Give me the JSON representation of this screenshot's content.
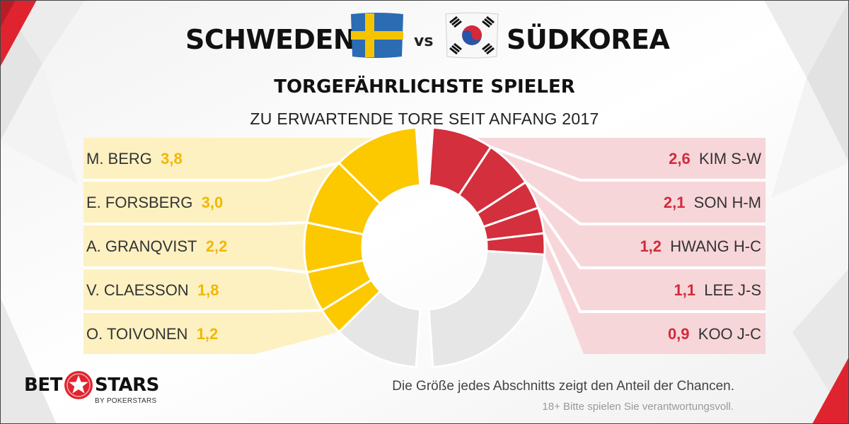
{
  "header": {
    "team_left": "SCHWEDEN",
    "vs": "vs",
    "team_right": "SÜDKOREA",
    "flag_left": "sweden-flag-icon",
    "flag_right": "south-korea-flag-icon"
  },
  "chart_data": {
    "type": "pie",
    "title": "TORGEFÄHRLICHSTE SPIELER",
    "subtitle": "ZU ERWARTENDE TORE SEIT ANFANG 2017",
    "series": [
      {
        "name": "SCHWEDEN",
        "color": "#fcc800",
        "remainder_color": "#e6e6e6",
        "players": [
          {
            "name": "M. BERG",
            "value": 3.8,
            "label": "3,8"
          },
          {
            "name": "E. FORSBERG",
            "value": 3.0,
            "label": "3,0"
          },
          {
            "name": "A. GRANQVIST",
            "value": 2.2,
            "label": "2,2"
          },
          {
            "name": "V. CLAESSON",
            "value": 1.8,
            "label": "1,8"
          },
          {
            "name": "O. TOIVONEN",
            "value": 1.2,
            "label": "1,2"
          }
        ]
      },
      {
        "name": "SÜDKOREA",
        "color": "#d32f3c",
        "remainder_color": "#e6e6e6",
        "players": [
          {
            "name": "KIM S-W",
            "value": 2.6,
            "label": "2,6"
          },
          {
            "name": "SON H-M",
            "value": 2.1,
            "label": "2,1"
          },
          {
            "name": "HWANG H-C",
            "value": 1.2,
            "label": "1,2"
          },
          {
            "name": "LEE J-S",
            "value": 1.1,
            "label": "1,1"
          },
          {
            "name": "KOO J-C",
            "value": 0.9,
            "label": "0,9"
          }
        ]
      }
    ],
    "panel_colors": {
      "left": "#fdf1c2",
      "right": "#f7d6da"
    }
  },
  "footer": {
    "note": "Die Größe jedes Abschnitts zeigt den Anteil der Chancen.",
    "legal": "18+ Bitte spielen Sie verantwortungsvoll.",
    "logo_left": "BET",
    "logo_right": "STARS",
    "logo_sub": "BY POKERSTARS",
    "logo_icon": "star-icon"
  }
}
